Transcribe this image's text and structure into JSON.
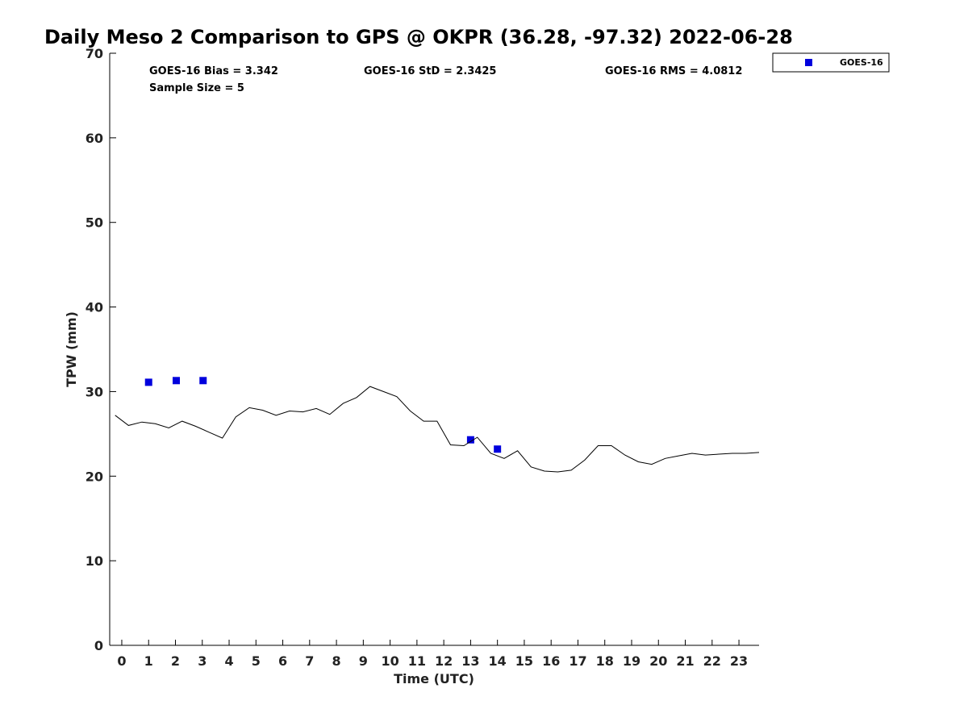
{
  "chart_data": {
    "type": "scatter",
    "title": "Daily Meso 2 Comparison to GPS @ OKPR (36.28, -97.32) 2022-06-28",
    "xlabel": "Time (UTC)",
    "ylabel": "TPW (mm)",
    "xlim": [
      -0.45,
      23.75
    ],
    "ylim": [
      0,
      70
    ],
    "xticks": [
      "0",
      "1",
      "2",
      "3",
      "4",
      "5",
      "6",
      "7",
      "8",
      "9",
      "10",
      "11",
      "12",
      "13",
      "14",
      "15",
      "16",
      "17",
      "18",
      "19",
      "20",
      "21",
      "22",
      "23"
    ],
    "yticks": [
      "0",
      "10",
      "20",
      "30",
      "40",
      "50",
      "60",
      "70"
    ],
    "grid": false,
    "legend_position": "outside-top-right",
    "stats": {
      "bias": "GOES-16 Bias = 3.342",
      "std": "GOES-16 StD = 2.3425",
      "rms": "GOES-16 RMS = 4.0812",
      "sample": "Sample Size = 5"
    },
    "series": [
      {
        "name": "GOES-16",
        "kind": "markers",
        "color": "#0000dd",
        "x": [
          1.0,
          2.03,
          3.03,
          13.0,
          14.0
        ],
        "y": [
          31.1,
          31.3,
          31.3,
          24.3,
          23.2
        ]
      },
      {
        "kind": "line",
        "color": "#000000",
        "x": [
          -0.25,
          0.25,
          0.75,
          1.25,
          1.75,
          2.25,
          2.75,
          3.25,
          3.75,
          4.25,
          4.75,
          5.25,
          5.75,
          6.25,
          6.75,
          7.25,
          7.75,
          8.25,
          8.75,
          9.25,
          9.75,
          10.25,
          10.75,
          11.25,
          11.75,
          12.25,
          12.75,
          13.25,
          13.75,
          14.25,
          14.75,
          15.25,
          15.75,
          16.25,
          16.75,
          17.25,
          17.75,
          18.25,
          18.75,
          19.25,
          19.75,
          20.25,
          20.75,
          21.25,
          21.75,
          22.25,
          22.75,
          23.25,
          23.75
        ],
        "y": [
          27.2,
          26.0,
          26.4,
          26.2,
          25.7,
          26.5,
          25.9,
          25.2,
          24.5,
          27.0,
          28.1,
          27.8,
          27.2,
          27.7,
          27.6,
          28.0,
          27.3,
          28.6,
          29.3,
          30.6,
          30.0,
          29.4,
          27.7,
          26.5,
          26.5,
          23.7,
          23.6,
          24.6,
          22.7,
          22.1,
          23.0,
          21.1,
          20.6,
          20.5,
          20.7,
          21.9,
          23.6,
          23.6,
          22.5,
          21.7,
          21.4,
          22.1,
          22.4,
          22.7,
          22.5,
          22.6,
          22.7,
          22.7,
          22.8
        ]
      }
    ]
  }
}
